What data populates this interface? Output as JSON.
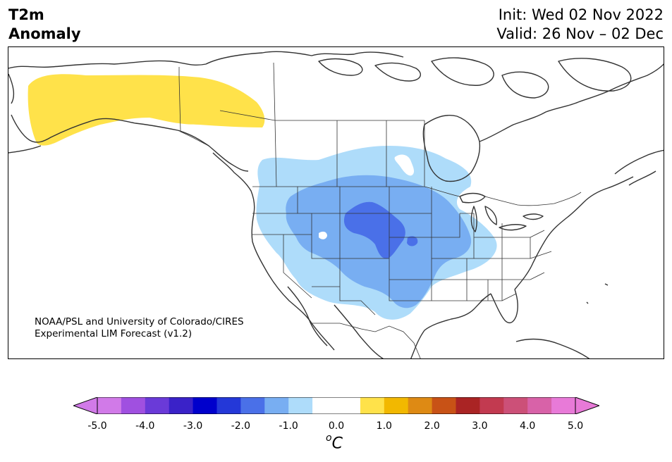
{
  "header": {
    "variable": "T2m",
    "field": "Anomaly",
    "init": "Init: Wed 02 Nov 2022",
    "valid": "Valid: 26 Nov – 02 Dec"
  },
  "map": {
    "region": "North America",
    "credit_line1": "NOAA/PSL and University of Colorado/CIRES",
    "credit_line2": "Experimental LIM Forecast (v1.2)",
    "anomaly_regions": [
      {
        "name": "Alaska / NW Canada",
        "sign": "warm",
        "level_c": 0.5
      },
      {
        "name": "Western & Central US / Canadian Prairies",
        "sign": "cold",
        "level_c": -0.5
      },
      {
        "name": "Great Plains / Rockies",
        "sign": "cold",
        "level_c": -1.0
      },
      {
        "name": "Central Plains core",
        "sign": "cold",
        "level_c": -1.5
      }
    ]
  },
  "colorbar": {
    "unit": "C",
    "unit_prefix": "o",
    "ticks": [
      "-5.0",
      "-4.0",
      "-3.0",
      "-2.0",
      "-1.0",
      "0.0",
      "1.0",
      "2.0",
      "3.0",
      "4.0",
      "5.0"
    ],
    "colors": [
      "#d17ae8",
      "#a050e0",
      "#6a3ad8",
      "#3a22c8",
      "#0000cc",
      "#2438d8",
      "#4a70e8",
      "#78aef2",
      "#aedcfa",
      "#ffffff",
      "#ffffff",
      "#ffe24a",
      "#f2b800",
      "#de8a14",
      "#c85216",
      "#aa2424",
      "#c23a50",
      "#cc5078",
      "#d862a8",
      "#e87ad8"
    ],
    "under_color": "#d17ae8",
    "over_color": "#e87ad8"
  }
}
